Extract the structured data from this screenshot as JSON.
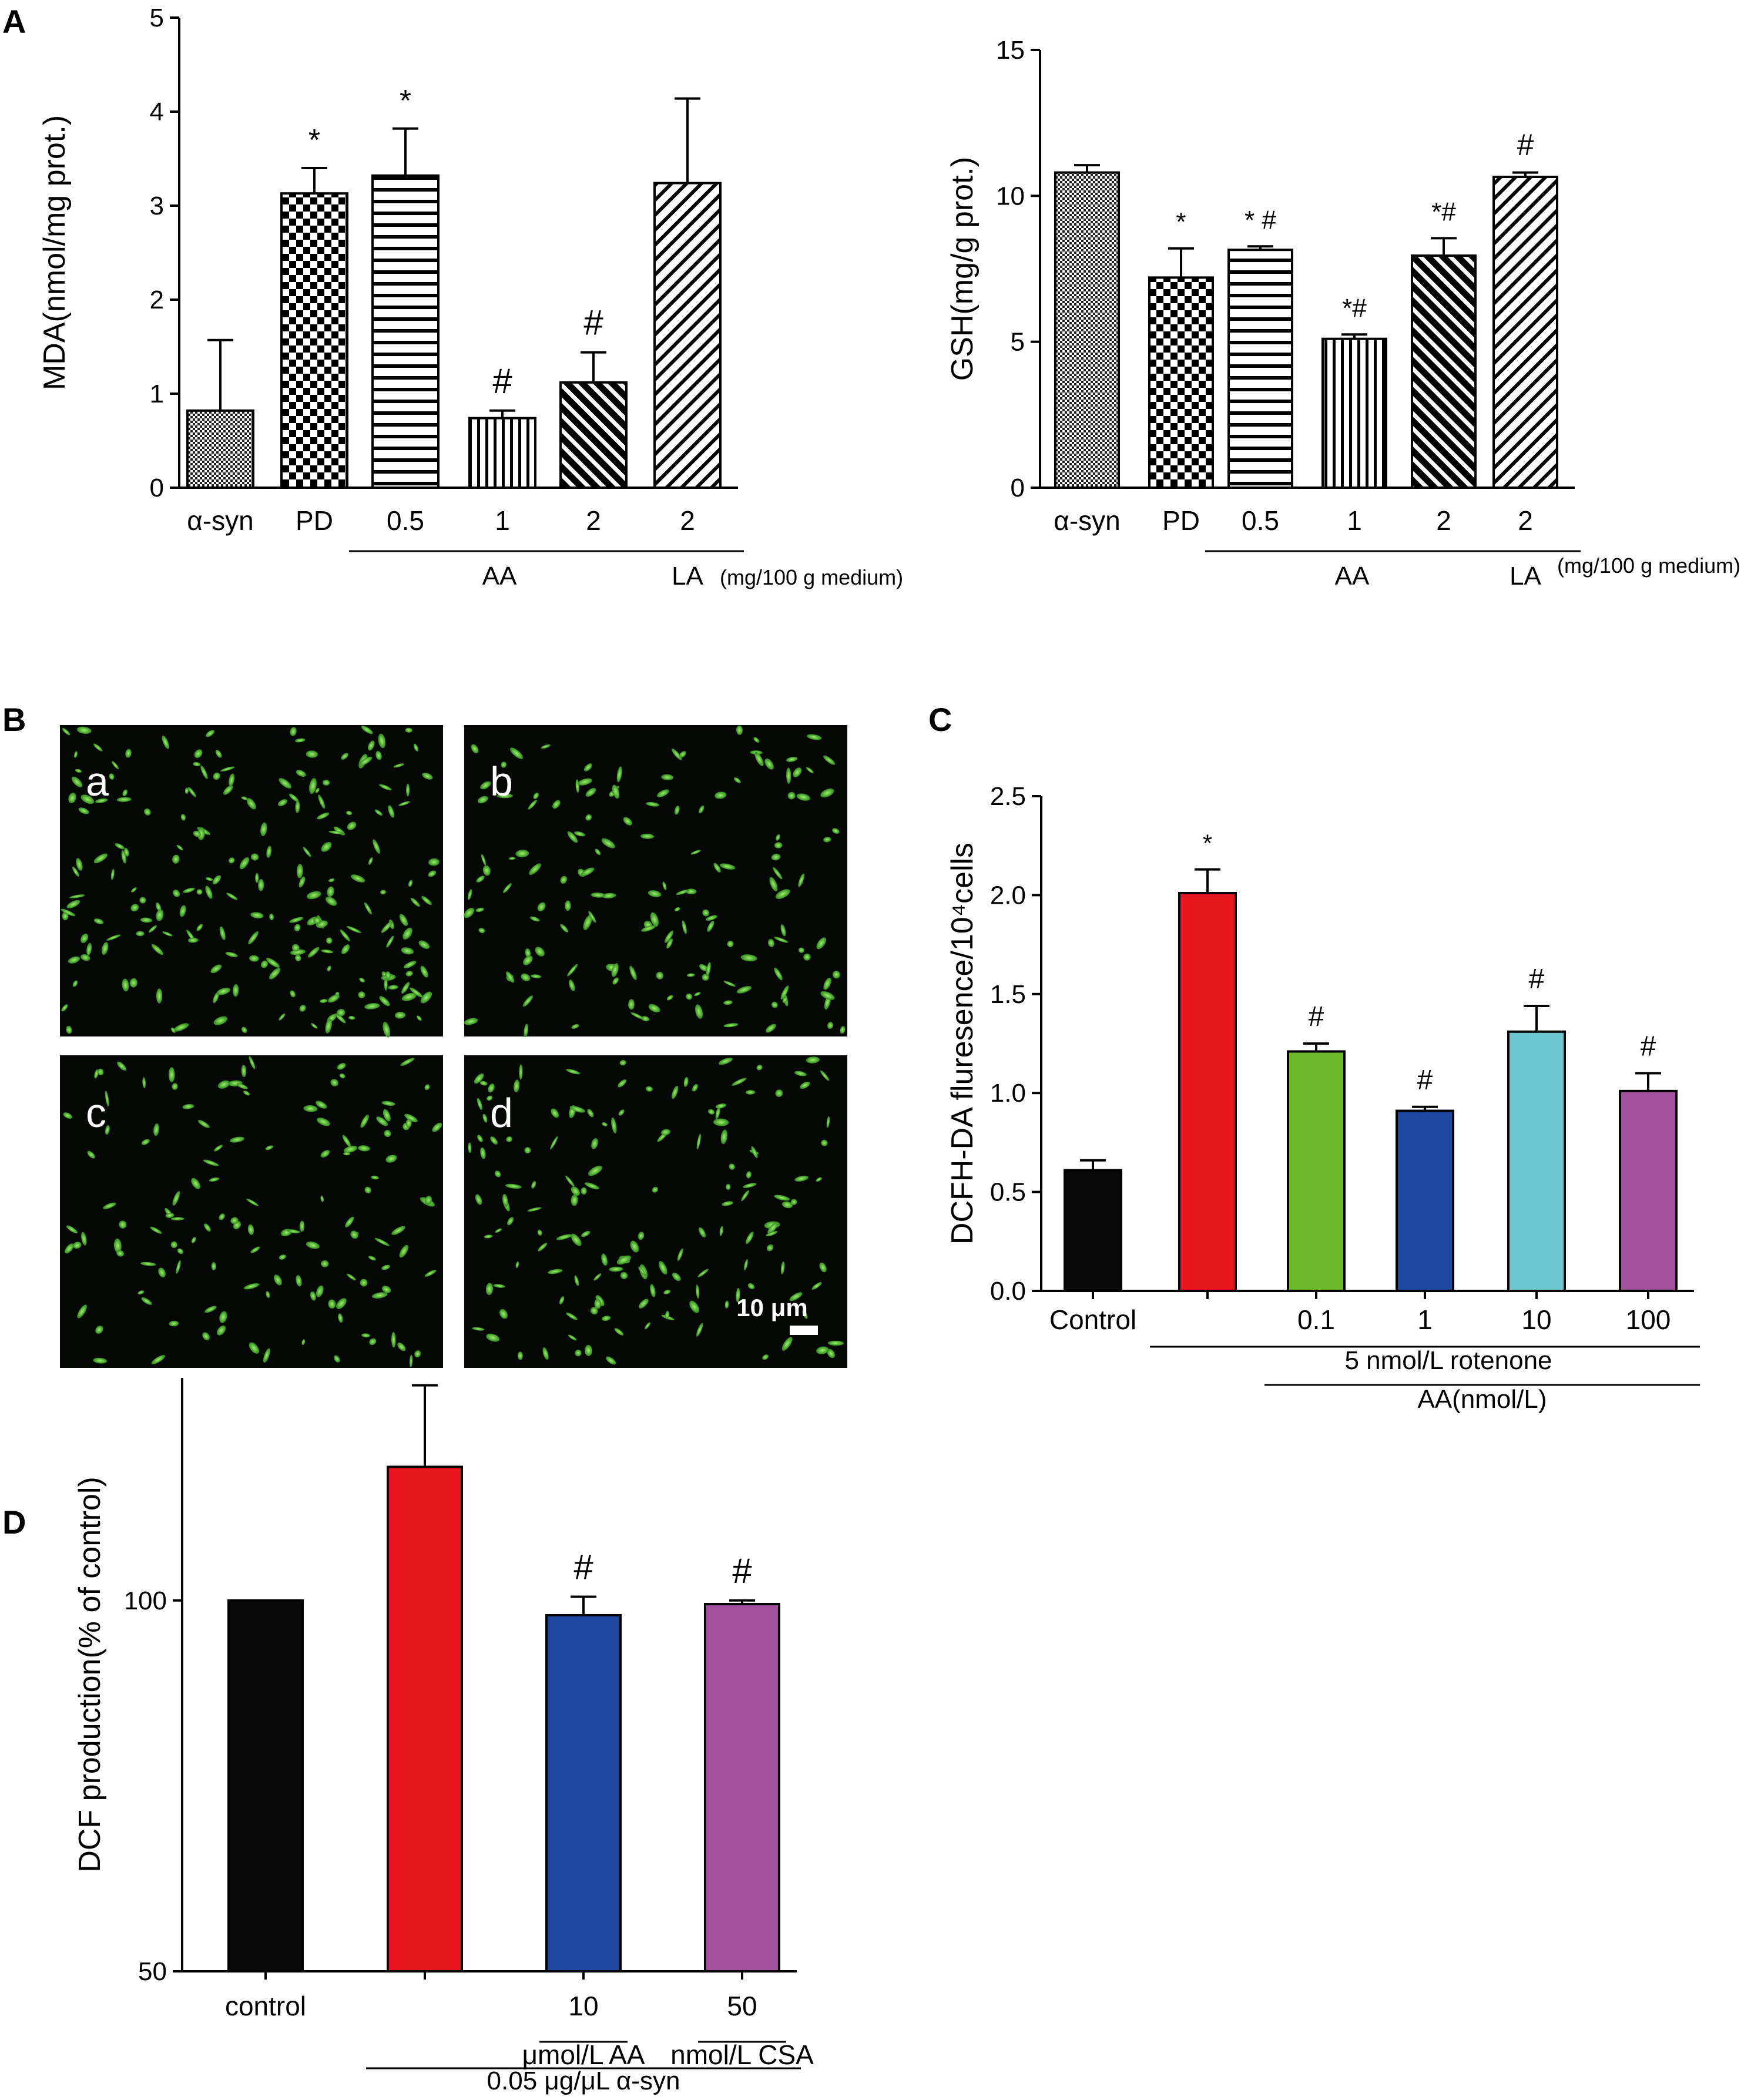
{
  "panel_labels": {
    "A": "A",
    "B": "B",
    "C": "C",
    "D": "D"
  },
  "micrograph": {
    "sub_labels": [
      "a",
      "b",
      "c",
      "d"
    ],
    "scale_bar": "10 μm"
  },
  "chart_data": [
    {
      "id": "mda",
      "type": "bar",
      "ylabel": "MDA(nmol/mg prot.)",
      "ylim": [
        0,
        5
      ],
      "yticks": [
        0,
        1,
        2,
        3,
        4,
        5
      ],
      "categories": [
        "α-syn",
        "PD",
        "0.5",
        "1",
        "2",
        "2"
      ],
      "values": [
        0.82,
        3.13,
        3.32,
        0.74,
        1.12,
        3.24
      ],
      "errors": [
        0.75,
        0.27,
        0.5,
        0.08,
        0.32,
        0.9
      ],
      "significance": [
        "",
        "*",
        "*",
        "#",
        "#",
        ""
      ],
      "patterns": [
        "dots",
        "checker",
        "hlines",
        "vlines",
        "diag-thick",
        "diag-thin"
      ],
      "brackets": [
        {
          "label": "AA",
          "from": 2,
          "to": 4
        },
        {
          "label": "LA",
          "from": 5,
          "to": 5
        }
      ],
      "note": "(mg/100 g medium)"
    },
    {
      "id": "gsh",
      "type": "bar",
      "ylabel": "GSH(mg/g prot.)",
      "ylim": [
        0,
        15
      ],
      "yticks": [
        0,
        5,
        10,
        15
      ],
      "categories": [
        "α-syn",
        "PD",
        "0.5",
        "1",
        "2",
        "2"
      ],
      "values": [
        10.8,
        7.2,
        8.15,
        5.1,
        7.95,
        10.65
      ],
      "errors": [
        0.25,
        1.0,
        0.12,
        0.15,
        0.6,
        0.15
      ],
      "significance": [
        "",
        "*",
        "* #",
        "*#",
        "*#",
        "#"
      ],
      "patterns": [
        "dots",
        "checker",
        "hlines",
        "vlines",
        "diag-thick",
        "diag-thin"
      ],
      "brackets": [
        {
          "label": "AA",
          "from": 2,
          "to": 4
        },
        {
          "label": "LA",
          "from": 5,
          "to": 5
        }
      ],
      "note": "(mg/100 g medium)"
    },
    {
      "id": "dcfh",
      "type": "bar",
      "ylabel": "DCFH-DA fluresence/10⁴cells",
      "ylim": [
        0,
        2.5
      ],
      "yticks": [
        0.0,
        0.5,
        1.0,
        1.5,
        2.0,
        2.5
      ],
      "tick_decimals": 1,
      "categories": [
        "Control",
        "",
        "0.1",
        "1",
        "10",
        "100"
      ],
      "values": [
        0.61,
        2.01,
        1.21,
        0.91,
        1.31,
        1.01
      ],
      "errors": [
        0.05,
        0.12,
        0.04,
        0.02,
        0.13,
        0.09
      ],
      "significance": [
        "",
        "*",
        "#",
        "#",
        "#",
        "#"
      ],
      "colors": [
        "#0a0a0a",
        "#e8161f",
        "#6cba2a",
        "#1d4a9e",
        "#6ec8d2",
        "#a4509e"
      ],
      "brackets": [
        {
          "label": "5 nmol/L rotenone",
          "from": 1,
          "to": 5
        },
        {
          "label": "AA(nmol/L)",
          "from": 2,
          "to": 5
        }
      ]
    },
    {
      "id": "dcf",
      "type": "bar",
      "ylabel": "DCF production(% of control)",
      "ylim": [
        50,
        130
      ],
      "yticks": [
        50,
        100
      ],
      "categories": [
        "control",
        "",
        "10",
        "50"
      ],
      "values": [
        100,
        118,
        98,
        99.5
      ],
      "errors": [
        0,
        11,
        2.5,
        0.5
      ],
      "significance": [
        "",
        "*",
        "#",
        "#"
      ],
      "colors": [
        "#0a0a0a",
        "#e8161f",
        "#1d4a9e",
        "#a4509e"
      ],
      "sub_labels": [
        "",
        "",
        "μmol/L AA",
        "nmol/L CSA"
      ],
      "brackets": [
        {
          "label": "0.05 μg/μL α-syn",
          "from": 1,
          "to": 3
        }
      ]
    }
  ]
}
